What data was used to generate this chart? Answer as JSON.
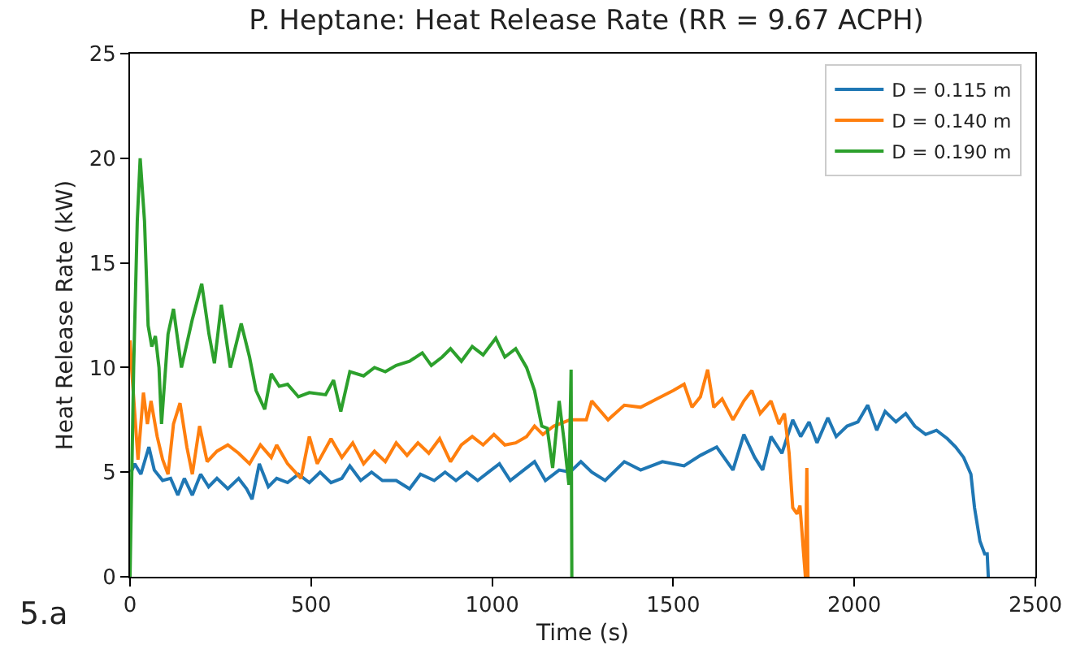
{
  "chart_data": {
    "type": "line",
    "title": "P. Heptane: Heat Release Rate (RR = 9.67 ACPH)",
    "xlabel": "Time (s)",
    "ylabel": "Heat Release Rate (kW)",
    "annotations": [
      "5.a"
    ],
    "xlim": [
      0,
      2500
    ],
    "xticks": [
      0,
      500,
      1000,
      1500,
      2000,
      2500
    ],
    "ylim": [
      0,
      25
    ],
    "yticks": [
      0,
      5,
      10,
      15,
      20,
      25
    ],
    "grid": false,
    "legend": "top right",
    "marker": "none",
    "line_style": "solid",
    "series": [
      {
        "name": "D = 0.115 m",
        "color": "#1f77b4",
        "x": [
          3,
          13,
          30,
          52,
          67,
          90,
          112,
          132,
          150,
          172,
          195,
          217,
          240,
          270,
          300,
          322,
          337,
          357,
          382,
          405,
          435,
          465,
          495,
          525,
          555,
          585,
          607,
          637,
          667,
          697,
          735,
          772,
          802,
          840,
          870,
          900,
          930,
          960,
          990,
          1020,
          1050,
          1080,
          1117,
          1147,
          1185,
          1215,
          1245,
          1275,
          1312,
          1365,
          1410,
          1470,
          1530,
          1575,
          1620,
          1665,
          1695,
          1725,
          1747,
          1770,
          1800,
          1830,
          1852,
          1875,
          1897,
          1927,
          1950,
          1980,
          2010,
          2037,
          2062,
          2085,
          2115,
          2142,
          2167,
          2197,
          2227,
          2257,
          2280,
          2302,
          2322,
          2332,
          2347,
          2360,
          2367,
          2370
        ],
        "values": [
          5.0,
          5.4,
          4.9,
          6.2,
          5.1,
          4.6,
          4.7,
          3.9,
          4.7,
          3.9,
          4.9,
          4.3,
          4.7,
          4.2,
          4.7,
          4.2,
          3.7,
          5.4,
          4.3,
          4.7,
          4.5,
          4.9,
          4.5,
          5.0,
          4.5,
          4.7,
          5.3,
          4.6,
          5.0,
          4.6,
          4.6,
          4.2,
          4.9,
          4.6,
          5.0,
          4.6,
          5.0,
          4.6,
          5.0,
          5.4,
          4.6,
          5.0,
          5.5,
          4.6,
          5.1,
          5.0,
          5.5,
          5.0,
          4.6,
          5.5,
          5.1,
          5.5,
          5.3,
          5.8,
          6.2,
          5.1,
          6.8,
          5.7,
          5.1,
          6.7,
          5.9,
          7.5,
          6.7,
          7.4,
          6.4,
          7.6,
          6.7,
          7.2,
          7.4,
          8.2,
          7.0,
          7.9,
          7.4,
          7.8,
          7.2,
          6.8,
          7.0,
          6.6,
          6.2,
          5.7,
          4.9,
          3.3,
          1.7,
          1.1,
          1.1,
          0
        ]
      },
      {
        "name": "D = 0.140 m",
        "color": "#ff7f0e",
        "x": [
          0,
          5,
          22,
          37,
          48,
          58,
          75,
          90,
          105,
          120,
          138,
          157,
          172,
          192,
          213,
          240,
          270,
          300,
          330,
          360,
          390,
          405,
          435,
          472,
          495,
          517,
          555,
          585,
          615,
          645,
          675,
          705,
          735,
          765,
          795,
          825,
          855,
          885,
          915,
          945,
          975,
          1005,
          1035,
          1065,
          1095,
          1117,
          1140,
          1170,
          1215,
          1260,
          1275,
          1320,
          1365,
          1410,
          1455,
          1500,
          1530,
          1552,
          1575,
          1595,
          1612,
          1635,
          1665,
          1695,
          1717,
          1740,
          1770,
          1792,
          1807,
          1820,
          1830,
          1842,
          1850,
          1860,
          1865,
          1869,
          1872
        ],
        "values": [
          11.3,
          9.8,
          5.6,
          8.8,
          7.3,
          8.4,
          6.7,
          5.6,
          4.9,
          7.3,
          8.3,
          6.2,
          4.9,
          7.2,
          5.5,
          6.0,
          6.3,
          5.9,
          5.4,
          6.3,
          5.7,
          6.3,
          5.4,
          4.7,
          6.7,
          5.4,
          6.6,
          5.7,
          6.4,
          5.4,
          6.0,
          5.5,
          6.4,
          5.8,
          6.4,
          5.9,
          6.6,
          5.5,
          6.3,
          6.7,
          6.3,
          6.8,
          6.3,
          6.4,
          6.7,
          7.2,
          6.8,
          7.2,
          7.5,
          7.5,
          8.4,
          7.5,
          8.2,
          8.1,
          8.5,
          8.9,
          9.2,
          8.1,
          8.6,
          9.9,
          8.1,
          8.5,
          7.5,
          8.4,
          8.9,
          7.8,
          8.4,
          7.3,
          7.8,
          5.9,
          3.3,
          3.0,
          3.4,
          1.1,
          0,
          5.2,
          0
        ]
      },
      {
        "name": "D = 0.190 m",
        "color": "#2ca02c",
        "x": [
          0,
          10,
          20,
          28,
          40,
          50,
          60,
          70,
          80,
          87,
          105,
          120,
          142,
          172,
          198,
          218,
          233,
          252,
          277,
          307,
          330,
          348,
          372,
          390,
          412,
          435,
          465,
          495,
          540,
          562,
          582,
          607,
          645,
          675,
          705,
          735,
          772,
          807,
          832,
          862,
          885,
          915,
          945,
          975,
          1010,
          1035,
          1065,
          1095,
          1117,
          1137,
          1152,
          1167,
          1185,
          1200,
          1212,
          1218,
          1220
        ],
        "values": [
          0,
          10,
          17,
          20,
          17,
          12,
          11,
          11.5,
          10,
          7.3,
          11.6,
          12.8,
          10,
          12.3,
          14,
          11.6,
          10.2,
          13,
          10,
          12.1,
          10.5,
          8.9,
          8,
          9.7,
          9.1,
          9.2,
          8.6,
          8.8,
          8.7,
          9.4,
          7.9,
          9.8,
          9.6,
          10,
          9.8,
          10.1,
          10.3,
          10.7,
          10.1,
          10.5,
          10.9,
          10.3,
          11,
          10.6,
          11.4,
          10.5,
          10.9,
          10,
          8.9,
          7.2,
          7.1,
          5.2,
          8.4,
          6.3,
          4.4,
          9.9,
          0
        ]
      }
    ]
  }
}
